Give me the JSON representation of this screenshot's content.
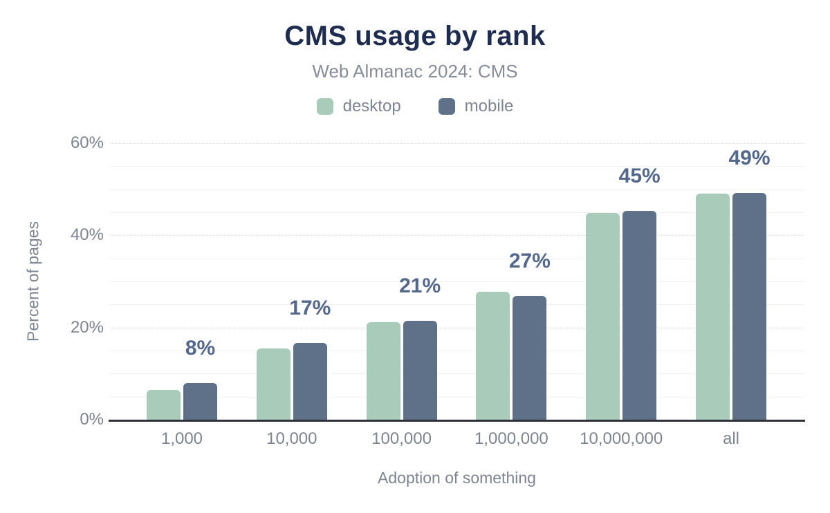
{
  "title": "CMS usage by rank",
  "subtitle": "Web Almanac 2024: CMS",
  "legend": [
    {
      "label": "desktop",
      "color": "#a9cbb9"
    },
    {
      "label": "mobile",
      "color": "#5f7089"
    }
  ],
  "chart_data": {
    "type": "bar",
    "title": "CMS usage by rank",
    "subtitle": "Web Almanac 2024: CMS",
    "categories": [
      "1,000",
      "10,000",
      "100,000",
      "1,000,000",
      "10,000,000",
      "all"
    ],
    "series": [
      {
        "name": "desktop",
        "color": "#a9cbb9",
        "values": [
          6.4,
          15.4,
          21.1,
          27.7,
          44.8,
          49.1
        ]
      },
      {
        "name": "mobile",
        "color": "#5f7089",
        "values": [
          8.0,
          16.6,
          21.4,
          26.9,
          45.3,
          49.2
        ]
      }
    ],
    "bar_labels": [
      "8%",
      "17%",
      "21%",
      "27%",
      "45%",
      "49%"
    ],
    "xlabel": "Adoption of something",
    "ylabel": "Percent of pages",
    "ylim": [
      0,
      60
    ],
    "yticks": [
      {
        "value": 0,
        "label": "0%"
      },
      {
        "value": 20,
        "label": "20%"
      },
      {
        "value": 40,
        "label": "40%"
      },
      {
        "value": 60,
        "label": "60%"
      }
    ],
    "grid_minor_step": 5,
    "grid": true,
    "legend_position": "top"
  },
  "colors": {
    "background": "#ffffff",
    "title": "#1d2c4f",
    "subtitle": "#878d99",
    "axis_text": "#7e8490",
    "data_label": "#54688c",
    "axis_line": "#2e3138",
    "grid_minor": "#f2f2f2",
    "grid_major": "#dcdcdc",
    "desktop_bar": "#a9cbb9",
    "mobile_bar": "#5f7089"
  }
}
